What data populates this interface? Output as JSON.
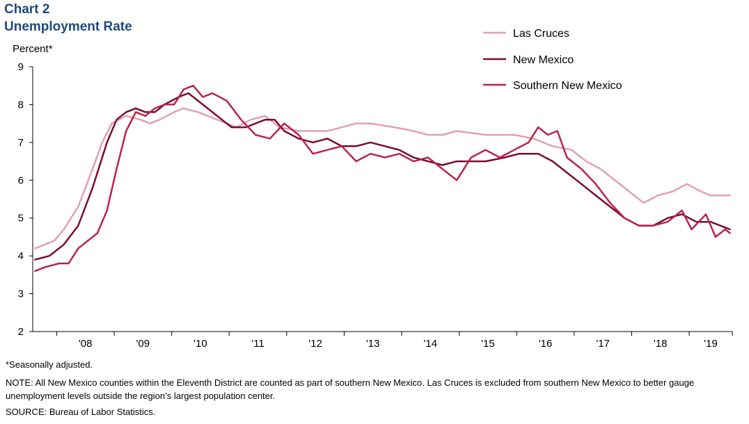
{
  "header": {
    "chart_number": "Chart 2",
    "title": "Unemployment  Rate",
    "y_unit": "Percent*"
  },
  "footer": {
    "note1": "*Seasonally adjusted.",
    "note2": "NOTE: All New Mexico counties within the Eleventh District are counted as part of southern New Mexico. Las Cruces is excluded from southern New Mexico to better gauge unemployment levels outside the region’s largest population center.",
    "source": "SOURCE:  Bureau of Labor Statistics."
  },
  "colors": {
    "las_cruces": "#E3A0AE",
    "new_mexico": "#7A0A32",
    "southern_new_mexico": "#B8234A",
    "title": "#1F497D"
  },
  "chart_data": {
    "type": "line",
    "title": "Unemployment  Rate",
    "ylabel": "Percent*",
    "xlabel": "",
    "ylim": [
      2,
      9
    ],
    "yticks": [
      2,
      3,
      4,
      5,
      6,
      7,
      8,
      9
    ],
    "x_range": [
      "2007-08",
      "2019-09"
    ],
    "x_tick_labels": [
      "'08",
      "'09",
      "'10",
      "'11",
      "'12",
      "'13",
      "'14",
      "'15",
      "'16",
      "'17",
      "'18",
      "'19"
    ],
    "grid": false,
    "legend": "top-right",
    "series": [
      {
        "name": "Las Cruces",
        "points": [
          [
            "2007-08",
            4.2
          ],
          [
            "2007-12",
            4.4
          ],
          [
            "2008-02",
            4.7
          ],
          [
            "2008-05",
            5.3
          ],
          [
            "2008-08",
            6.3
          ],
          [
            "2008-10",
            7.0
          ],
          [
            "2008-12",
            7.5
          ],
          [
            "2009-03",
            7.7
          ],
          [
            "2009-06",
            7.6
          ],
          [
            "2009-08",
            7.5
          ],
          [
            "2009-10",
            7.6
          ],
          [
            "2010-01",
            7.8
          ],
          [
            "2010-03",
            7.9
          ],
          [
            "2010-06",
            7.8
          ],
          [
            "2010-10",
            7.6
          ],
          [
            "2011-02",
            7.4
          ],
          [
            "2011-05",
            7.6
          ],
          [
            "2011-08",
            7.7
          ],
          [
            "2011-11",
            7.4
          ],
          [
            "2012-03",
            7.3
          ],
          [
            "2012-09",
            7.3
          ],
          [
            "2012-12",
            7.4
          ],
          [
            "2013-03",
            7.5
          ],
          [
            "2013-06",
            7.5
          ],
          [
            "2013-11",
            7.4
          ],
          [
            "2014-03",
            7.3
          ],
          [
            "2014-06",
            7.2
          ],
          [
            "2014-09",
            7.2
          ],
          [
            "2014-12",
            7.3
          ],
          [
            "2015-06",
            7.2
          ],
          [
            "2015-12",
            7.2
          ],
          [
            "2016-04",
            7.1
          ],
          [
            "2016-08",
            6.9
          ],
          [
            "2016-12",
            6.8
          ],
          [
            "2017-03",
            6.5
          ],
          [
            "2017-06",
            6.3
          ],
          [
            "2017-09",
            6.0
          ],
          [
            "2017-12",
            5.7
          ],
          [
            "2018-03",
            5.4
          ],
          [
            "2018-06",
            5.6
          ],
          [
            "2018-09",
            5.7
          ],
          [
            "2018-12",
            5.9
          ],
          [
            "2019-03",
            5.7
          ],
          [
            "2019-05",
            5.6
          ],
          [
            "2019-09",
            5.6
          ]
        ]
      },
      {
        "name": "New Mexico",
        "points": [
          [
            "2007-08",
            3.9
          ],
          [
            "2007-11",
            4.0
          ],
          [
            "2008-02",
            4.3
          ],
          [
            "2008-05",
            4.8
          ],
          [
            "2008-08",
            5.8
          ],
          [
            "2008-11",
            7.0
          ],
          [
            "2009-01",
            7.6
          ],
          [
            "2009-03",
            7.8
          ],
          [
            "2009-05",
            7.9
          ],
          [
            "2009-07",
            7.8
          ],
          [
            "2009-09",
            7.8
          ],
          [
            "2009-11",
            8.0
          ],
          [
            "2010-02",
            8.2
          ],
          [
            "2010-04",
            8.3
          ],
          [
            "2010-07",
            8.0
          ],
          [
            "2010-10",
            7.7
          ],
          [
            "2011-01",
            7.4
          ],
          [
            "2011-04",
            7.4
          ],
          [
            "2011-06",
            7.5
          ],
          [
            "2011-08",
            7.6
          ],
          [
            "2011-10",
            7.6
          ],
          [
            "2011-12",
            7.3
          ],
          [
            "2012-03",
            7.1
          ],
          [
            "2012-06",
            7.0
          ],
          [
            "2012-09",
            7.1
          ],
          [
            "2012-12",
            6.9
          ],
          [
            "2013-03",
            6.9
          ],
          [
            "2013-06",
            7.0
          ],
          [
            "2013-09",
            6.9
          ],
          [
            "2013-12",
            6.8
          ],
          [
            "2014-03",
            6.6
          ],
          [
            "2014-06",
            6.5
          ],
          [
            "2014-09",
            6.4
          ],
          [
            "2014-12",
            6.5
          ],
          [
            "2015-06",
            6.5
          ],
          [
            "2015-10",
            6.6
          ],
          [
            "2016-01",
            6.7
          ],
          [
            "2016-05",
            6.7
          ],
          [
            "2016-08",
            6.5
          ],
          [
            "2016-11",
            6.2
          ],
          [
            "2017-02",
            5.9
          ],
          [
            "2017-05",
            5.6
          ],
          [
            "2017-08",
            5.3
          ],
          [
            "2017-11",
            5.0
          ],
          [
            "2018-02",
            4.8
          ],
          [
            "2018-05",
            4.8
          ],
          [
            "2018-08",
            5.0
          ],
          [
            "2018-11",
            5.1
          ],
          [
            "2019-02",
            4.9
          ],
          [
            "2019-05",
            4.9
          ],
          [
            "2019-09",
            4.7
          ]
        ]
      },
      {
        "name": "Southern New Mexico",
        "points": [
          [
            "2007-08",
            3.6
          ],
          [
            "2007-10",
            3.7
          ],
          [
            "2008-01",
            3.8
          ],
          [
            "2008-03",
            3.8
          ],
          [
            "2008-05",
            4.2
          ],
          [
            "2008-07",
            4.4
          ],
          [
            "2008-09",
            4.6
          ],
          [
            "2008-11",
            5.2
          ],
          [
            "2009-01",
            6.3
          ],
          [
            "2009-03",
            7.3
          ],
          [
            "2009-05",
            7.8
          ],
          [
            "2009-07",
            7.7
          ],
          [
            "2009-09",
            7.9
          ],
          [
            "2009-11",
            8.0
          ],
          [
            "2010-01",
            8.0
          ],
          [
            "2010-03",
            8.4
          ],
          [
            "2010-05",
            8.5
          ],
          [
            "2010-07",
            8.2
          ],
          [
            "2010-09",
            8.3
          ],
          [
            "2010-12",
            8.1
          ],
          [
            "2011-03",
            7.6
          ],
          [
            "2011-06",
            7.2
          ],
          [
            "2011-09",
            7.1
          ],
          [
            "2011-12",
            7.5
          ],
          [
            "2012-03",
            7.2
          ],
          [
            "2012-06",
            6.7
          ],
          [
            "2012-09",
            6.8
          ],
          [
            "2012-12",
            6.9
          ],
          [
            "2013-03",
            6.5
          ],
          [
            "2013-06",
            6.7
          ],
          [
            "2013-09",
            6.6
          ],
          [
            "2013-12",
            6.7
          ],
          [
            "2014-03",
            6.5
          ],
          [
            "2014-06",
            6.6
          ],
          [
            "2014-09",
            6.3
          ],
          [
            "2014-12",
            6.0
          ],
          [
            "2015-03",
            6.6
          ],
          [
            "2015-06",
            6.8
          ],
          [
            "2015-09",
            6.6
          ],
          [
            "2015-12",
            6.8
          ],
          [
            "2016-03",
            7.0
          ],
          [
            "2016-05",
            7.4
          ],
          [
            "2016-07",
            7.2
          ],
          [
            "2016-09",
            7.3
          ],
          [
            "2016-11",
            6.6
          ],
          [
            "2017-02",
            6.3
          ],
          [
            "2017-05",
            5.9
          ],
          [
            "2017-08",
            5.4
          ],
          [
            "2017-11",
            5.0
          ],
          [
            "2018-02",
            4.8
          ],
          [
            "2018-05",
            4.8
          ],
          [
            "2018-08",
            4.9
          ],
          [
            "2018-11",
            5.2
          ],
          [
            "2019-01",
            4.7
          ],
          [
            "2019-04",
            5.1
          ],
          [
            "2019-06",
            4.5
          ],
          [
            "2019-08",
            4.7
          ],
          [
            "2019-09",
            4.6
          ]
        ]
      }
    ]
  }
}
